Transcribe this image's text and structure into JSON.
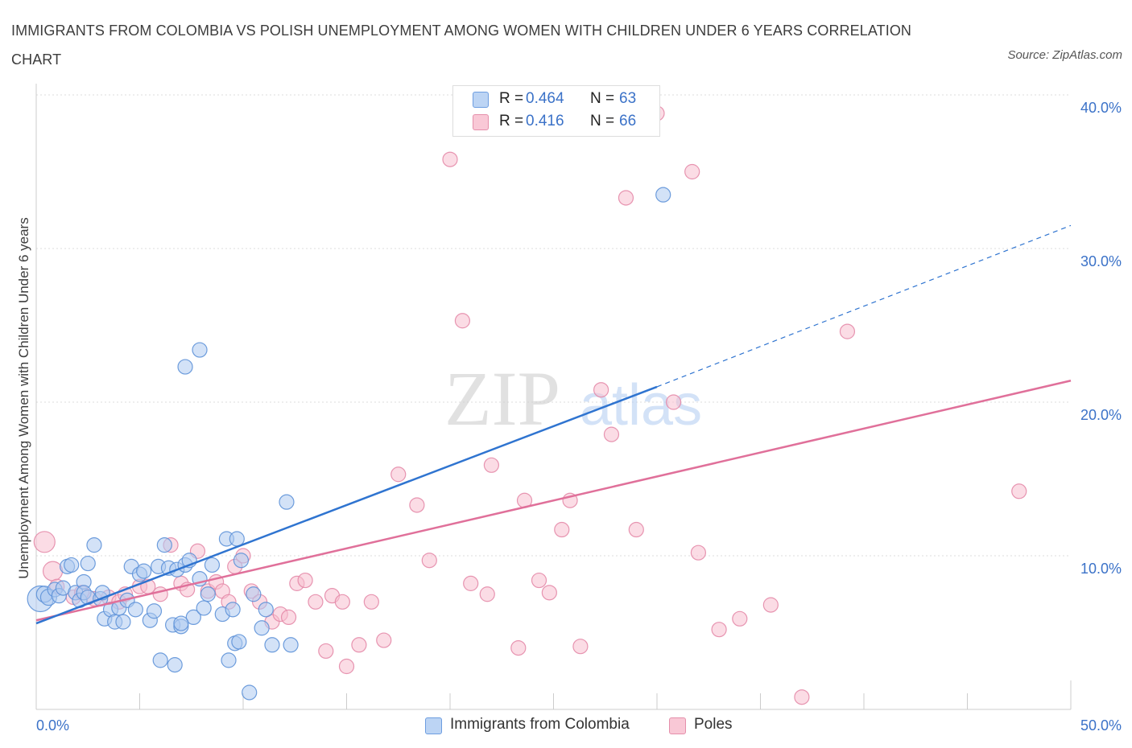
{
  "title": "IMMIGRANTS FROM COLOMBIA VS POLISH UNEMPLOYMENT AMONG WOMEN WITH CHILDREN UNDER 6 YEARS CORRELATION CHART",
  "source": "Source: ZipAtlas.com",
  "watermark": {
    "zip": "ZIP",
    "atlas": "atlas"
  },
  "colors": {
    "blue_fill": "#aecbf0",
    "blue_stroke": "#5e92d8",
    "blue_line": "#2f74d0",
    "pink_fill": "#f8bfd0",
    "pink_stroke": "#e48aa8",
    "pink_line": "#e0709a",
    "axis_text": "#3b72c8",
    "grid": "#dddddd"
  },
  "legend_top": [
    {
      "r_label": "R =",
      "r_value": "0.464",
      "n_label": "N =",
      "n_value": "63"
    },
    {
      "r_label": "R =",
      "r_value": "0.416",
      "n_label": "N =",
      "n_value": "66"
    }
  ],
  "chart_data": {
    "type": "scatter",
    "title": "IMMIGRANTS FROM COLOMBIA VS POLISH UNEMPLOYMENT AMONG WOMEN WITH CHILDREN UNDER 6 YEARS CORRELATION CHART",
    "xlabel": "",
    "ylabel": "Unemployment Among Women with Children Under 6 years",
    "xlim": [
      0,
      50
    ],
    "ylim": [
      0,
      40
    ],
    "x_tick_labels": [
      "0.0%",
      "50.0%"
    ],
    "y_ticks": [
      10,
      20,
      30,
      40
    ],
    "y_tick_labels": [
      "10.0%",
      "20.0%",
      "30.0%",
      "40.0%"
    ],
    "grid": true,
    "legend_position": "bottom",
    "series": [
      {
        "name": "Immigrants from Colombia",
        "color": "blue",
        "R": 0.464,
        "N": 63,
        "trend": {
          "x0": 0,
          "y0": 5.6,
          "x1": 30,
          "y1": 21.0,
          "dashed_to_x": 50,
          "dashed_to_y": 31.5
        },
        "points": [
          [
            0.2,
            7.2,
            16
          ],
          [
            0.4,
            7.5,
            10
          ],
          [
            0.6,
            7.3,
            10
          ],
          [
            0.9,
            7.8,
            9
          ],
          [
            1.1,
            7.4,
            9
          ],
          [
            1.3,
            7.9,
            9
          ],
          [
            1.5,
            9.3,
            9
          ],
          [
            1.7,
            9.4,
            9
          ],
          [
            1.9,
            7.6,
            9
          ],
          [
            2.1,
            7.1,
            9
          ],
          [
            2.3,
            8.3,
            9
          ],
          [
            2.5,
            9.5,
            9
          ],
          [
            2.3,
            7.6,
            9
          ],
          [
            2.5,
            7.3,
            9
          ],
          [
            2.8,
            10.7,
            9
          ],
          [
            3.1,
            7.2,
            9
          ],
          [
            3.3,
            5.9,
            9
          ],
          [
            3.6,
            6.5,
            9
          ],
          [
            3.8,
            5.7,
            9
          ],
          [
            4.0,
            6.6,
            9
          ],
          [
            4.2,
            5.7,
            9
          ],
          [
            4.4,
            7.1,
            9
          ],
          [
            4.6,
            9.3,
            9
          ],
          [
            3.2,
            7.6,
            9
          ],
          [
            4.8,
            6.5,
            9
          ],
          [
            5.0,
            8.8,
            9
          ],
          [
            5.2,
            9.0,
            9
          ],
          [
            5.5,
            5.8,
            9
          ],
          [
            5.7,
            6.4,
            9
          ],
          [
            5.9,
            9.3,
            9
          ],
          [
            6.2,
            10.7,
            9
          ],
          [
            6.4,
            9.2,
            9
          ],
          [
            6.6,
            5.5,
            9
          ],
          [
            6.8,
            9.1,
            9
          ],
          [
            7.0,
            5.4,
            9
          ],
          [
            7.2,
            9.4,
            9
          ],
          [
            7.4,
            9.7,
            9
          ],
          [
            7.6,
            6.0,
            9
          ],
          [
            7.9,
            8.5,
            9
          ],
          [
            8.1,
            6.6,
            9
          ],
          [
            8.3,
            7.5,
            9
          ],
          [
            8.5,
            9.4,
            9
          ],
          [
            6.0,
            3.2,
            9
          ],
          [
            6.7,
            2.9,
            9
          ],
          [
            7.2,
            22.3,
            9
          ],
          [
            7.0,
            5.6,
            9
          ],
          [
            9.0,
            6.2,
            9
          ],
          [
            9.2,
            11.1,
            9
          ],
          [
            9.3,
            3.2,
            9
          ],
          [
            9.5,
            6.5,
            9
          ],
          [
            9.7,
            11.1,
            9
          ],
          [
            9.9,
            9.7,
            9
          ],
          [
            7.9,
            23.4,
            9
          ],
          [
            10.3,
            1.1,
            9
          ],
          [
            10.5,
            7.5,
            9
          ],
          [
            10.9,
            5.3,
            9
          ],
          [
            11.1,
            6.5,
            9
          ],
          [
            9.6,
            4.3,
            9
          ],
          [
            11.4,
            4.2,
            9
          ],
          [
            9.8,
            4.4,
            9
          ],
          [
            12.1,
            13.5,
            9
          ],
          [
            12.3,
            4.2,
            9
          ],
          [
            30.3,
            33.5,
            9
          ]
        ]
      },
      {
        "name": "Poles",
        "color": "pink",
        "R": 0.416,
        "N": 66,
        "trend": {
          "x0": 0,
          "y0": 5.8,
          "x1": 50,
          "y1": 21.4
        },
        "points": [
          [
            0.4,
            10.9,
            13
          ],
          [
            0.8,
            9.0,
            12
          ],
          [
            1.0,
            8.0,
            9
          ],
          [
            1.8,
            7.3,
            9
          ],
          [
            2.2,
            7.6,
            9
          ],
          [
            2.8,
            7.2,
            9
          ],
          [
            3.5,
            7.3,
            9
          ],
          [
            4.0,
            7.0,
            9
          ],
          [
            4.3,
            7.5,
            9
          ],
          [
            5.0,
            8.0,
            9
          ],
          [
            5.4,
            8.0,
            9
          ],
          [
            6.0,
            7.5,
            9
          ],
          [
            6.5,
            10.7,
            9
          ],
          [
            7.0,
            8.2,
            9
          ],
          [
            7.3,
            7.8,
            9
          ],
          [
            7.8,
            10.3,
            9
          ],
          [
            8.3,
            7.7,
            9
          ],
          [
            8.7,
            8.3,
            9
          ],
          [
            9.0,
            7.7,
            9
          ],
          [
            9.3,
            7.0,
            9
          ],
          [
            9.6,
            9.3,
            9
          ],
          [
            10.0,
            10.0,
            9
          ],
          [
            10.4,
            7.7,
            9
          ],
          [
            10.8,
            7.0,
            9
          ],
          [
            11.4,
            5.7,
            9
          ],
          [
            11.8,
            6.2,
            9
          ],
          [
            12.2,
            6.0,
            9
          ],
          [
            12.6,
            8.2,
            9
          ],
          [
            13.0,
            8.4,
            9
          ],
          [
            13.5,
            7.0,
            9
          ],
          [
            14.0,
            3.8,
            9
          ],
          [
            14.3,
            7.4,
            9
          ],
          [
            14.8,
            7.0,
            9
          ],
          [
            15.0,
            2.8,
            9
          ],
          [
            15.6,
            4.2,
            9
          ],
          [
            16.2,
            7.0,
            9
          ],
          [
            16.8,
            4.5,
            9
          ],
          [
            17.5,
            15.3,
            9
          ],
          [
            18.4,
            13.3,
            9
          ],
          [
            19.0,
            9.7,
            9
          ],
          [
            20.0,
            35.8,
            9
          ],
          [
            20.6,
            25.3,
            9
          ],
          [
            21.0,
            8.2,
            9
          ],
          [
            21.8,
            7.5,
            9
          ],
          [
            22.0,
            15.9,
            9
          ],
          [
            23.3,
            4.0,
            9
          ],
          [
            23.6,
            13.6,
            9
          ],
          [
            24.3,
            8.4,
            9
          ],
          [
            24.8,
            7.6,
            9
          ],
          [
            25.4,
            11.7,
            9
          ],
          [
            25.8,
            13.6,
            9
          ],
          [
            26.3,
            4.1,
            9
          ],
          [
            27.3,
            20.8,
            9
          ],
          [
            27.8,
            17.9,
            9
          ],
          [
            28.5,
            33.3,
            9
          ],
          [
            29.0,
            11.7,
            9
          ],
          [
            30.0,
            38.8,
            9
          ],
          [
            30.8,
            20.0,
            9
          ],
          [
            31.7,
            35.0,
            9
          ],
          [
            32.0,
            10.2,
            9
          ],
          [
            33.0,
            5.2,
            9
          ],
          [
            34.0,
            5.9,
            9
          ],
          [
            35.5,
            6.8,
            9
          ],
          [
            37.0,
            0.8,
            9
          ],
          [
            39.2,
            24.6,
            9
          ],
          [
            47.5,
            14.2,
            9
          ]
        ]
      }
    ]
  }
}
